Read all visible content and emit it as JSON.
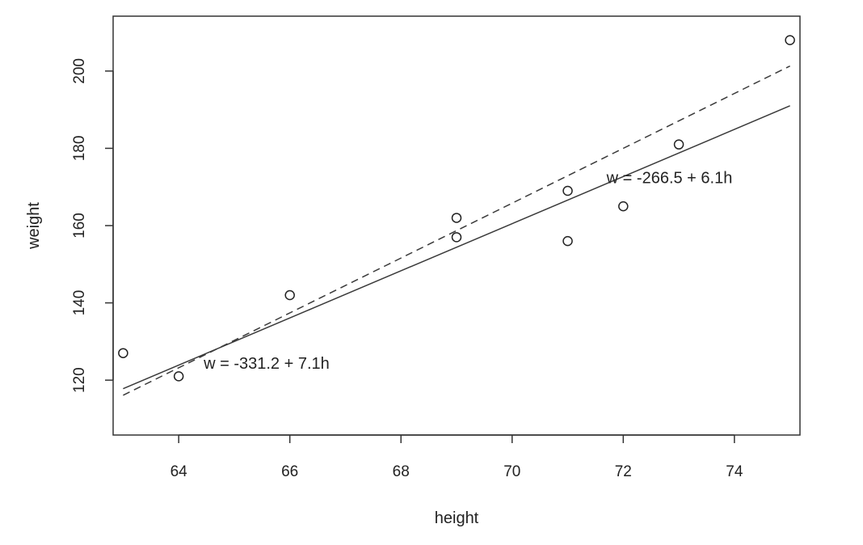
{
  "chart_data": {
    "type": "scatter",
    "title": "",
    "xlabel": "height",
    "ylabel": "weight",
    "xlim": [
      62.82,
      75.18
    ],
    "ylim": [
      105.8,
      214.2
    ],
    "xticks": [
      64,
      66,
      68,
      70,
      72,
      74
    ],
    "yticks": [
      120,
      140,
      160,
      180,
      200
    ],
    "grid": false,
    "points": [
      {
        "x": 63,
        "y": 127
      },
      {
        "x": 64,
        "y": 121
      },
      {
        "x": 66,
        "y": 142
      },
      {
        "x": 69,
        "y": 157
      },
      {
        "x": 69,
        "y": 162
      },
      {
        "x": 71,
        "y": 169
      },
      {
        "x": 71,
        "y": 156
      },
      {
        "x": 72,
        "y": 165
      },
      {
        "x": 73,
        "y": 181
      },
      {
        "x": 75,
        "y": 208
      }
    ],
    "lines": [
      {
        "style": "solid",
        "intercept": -266.5,
        "slope": 6.1,
        "x_from": 63,
        "x_to": 75
      },
      {
        "style": "dashed",
        "intercept": -331.2,
        "slope": 7.1,
        "x_from": 63,
        "x_to": 75
      }
    ],
    "annotations": [
      {
        "text": "w = -266.5 + 6.1h",
        "x": 71.7,
        "y": 171
      },
      {
        "text": "w = -331.2 + 7.1h",
        "x": 64.45,
        "y": 123
      }
    ],
    "colors": {
      "line": "#3a3a3a",
      "point": "#222222",
      "frame": "#333333"
    }
  }
}
